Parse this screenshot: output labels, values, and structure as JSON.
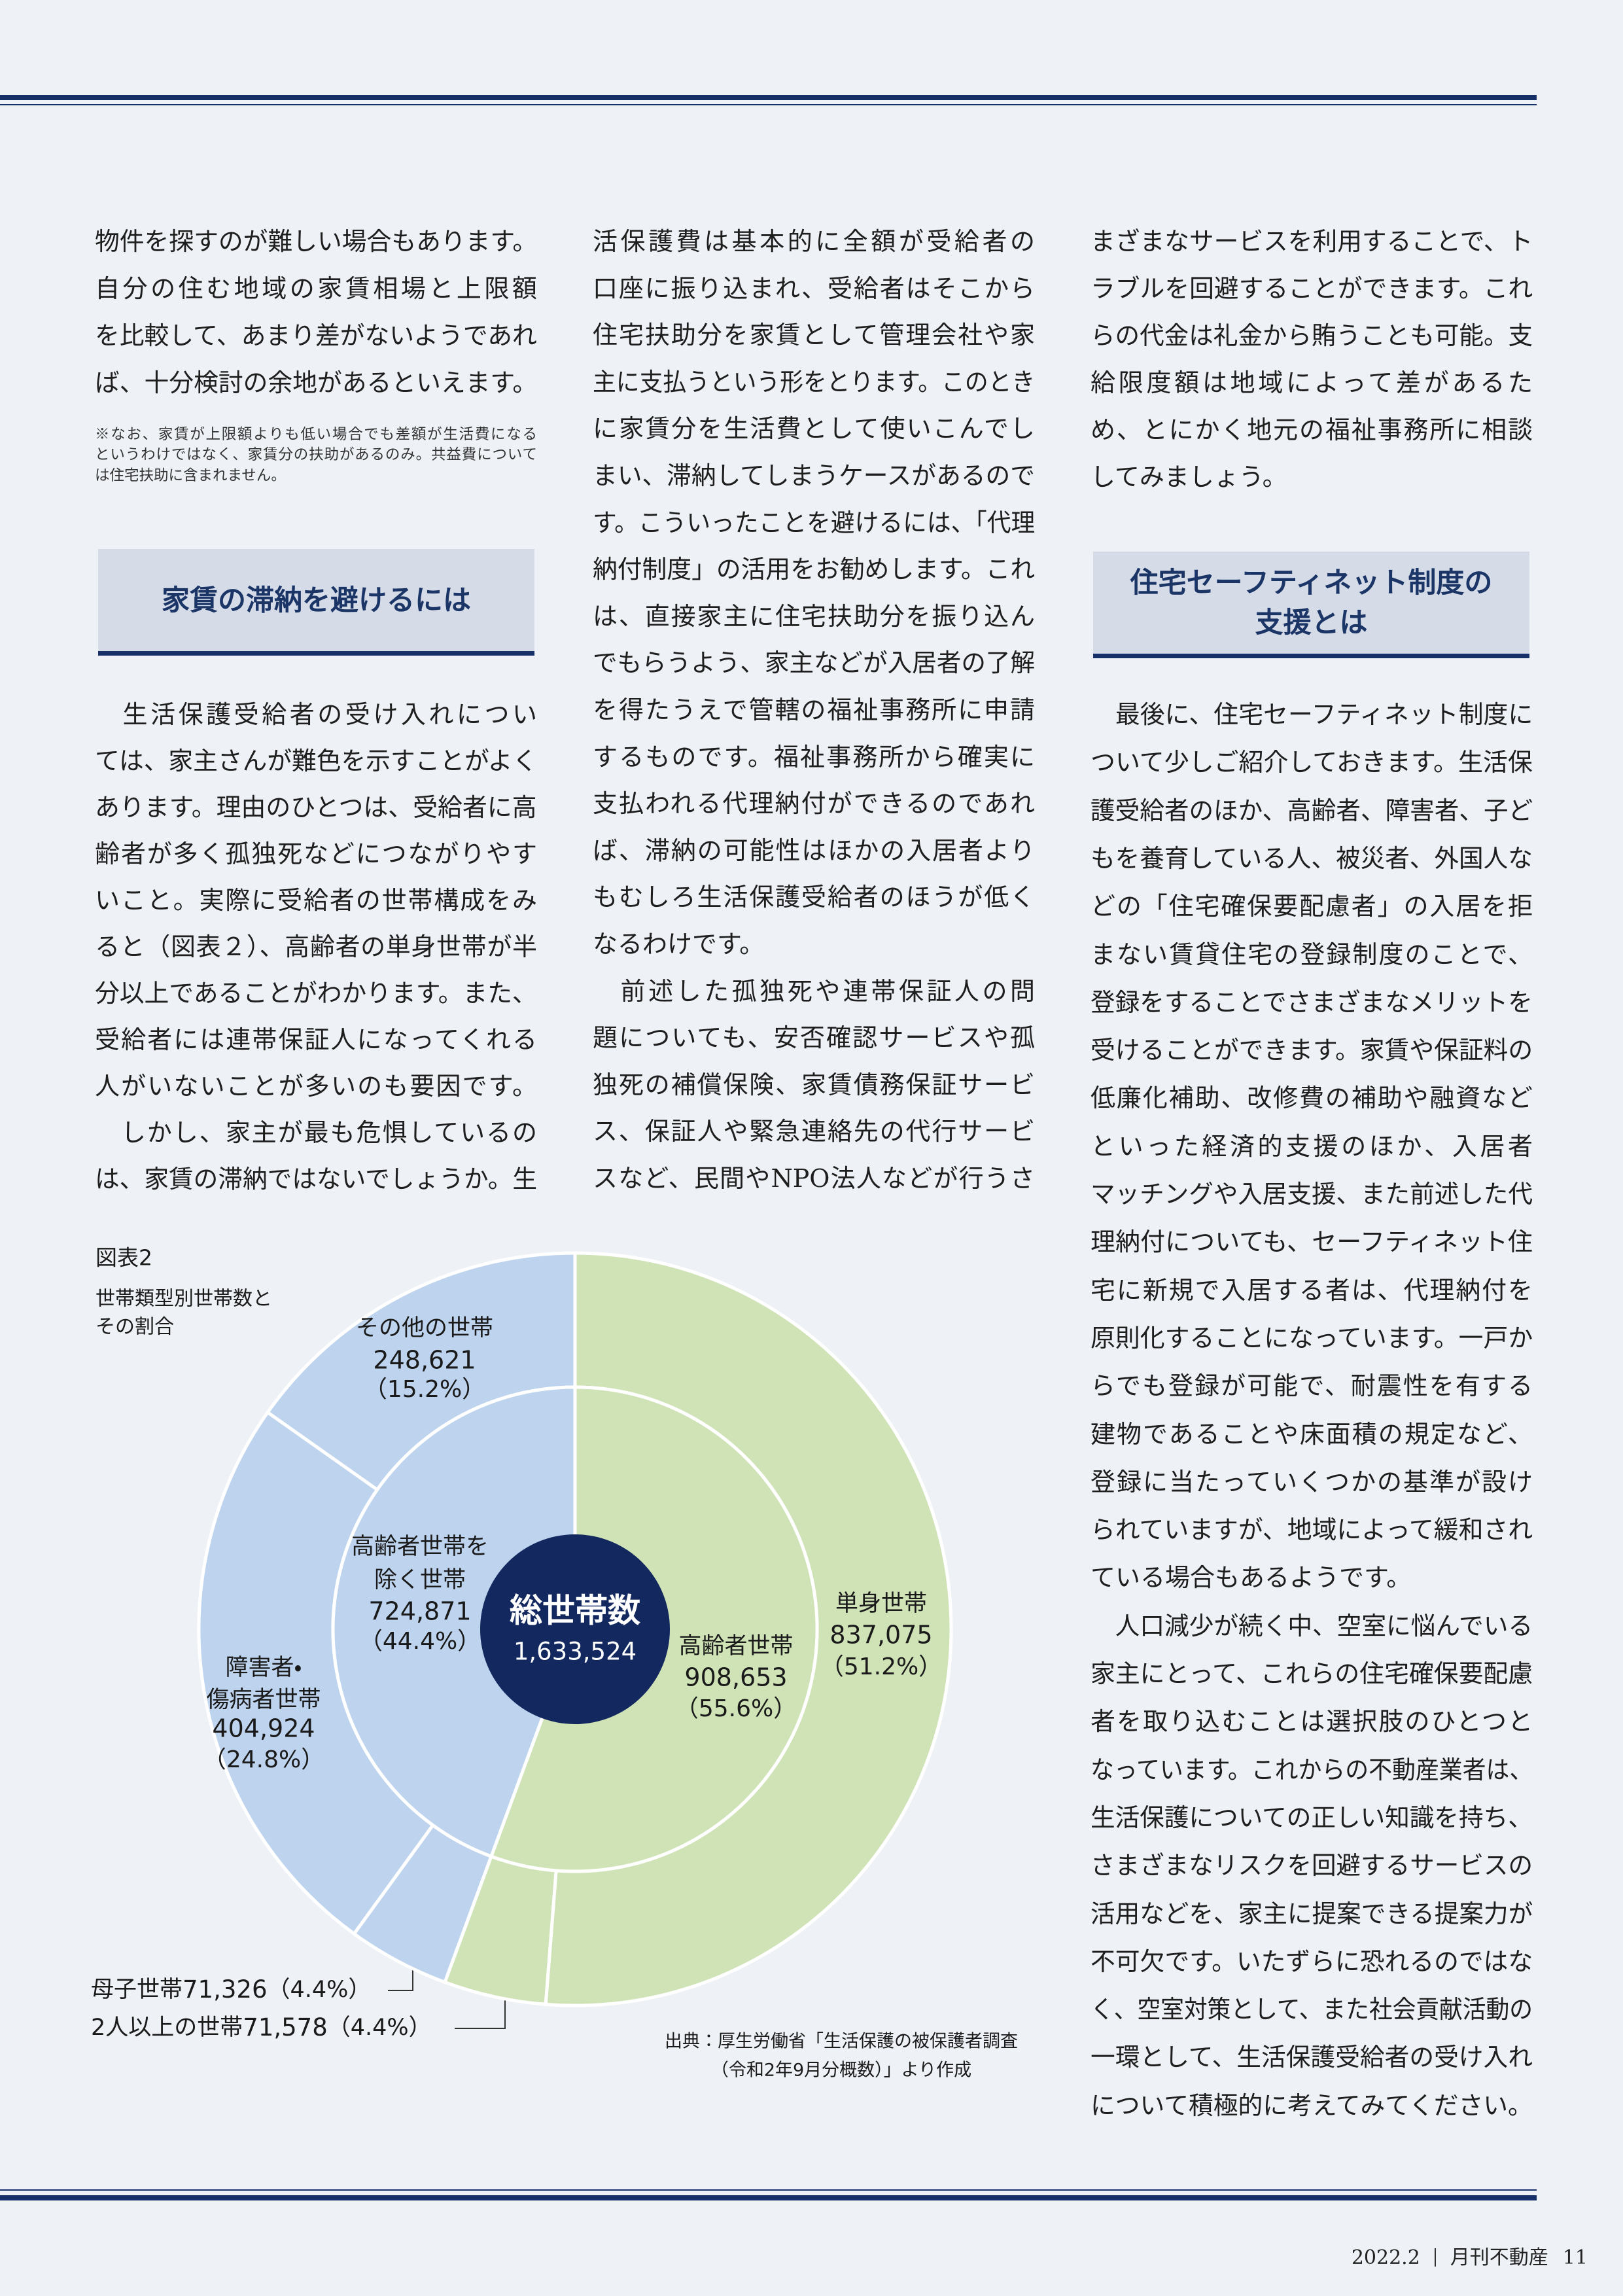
{
  "columns": [
    {
      "blocks": [
        {
          "lines": [
            "物件を探すのが難しい場合もあります。",
            "自分の住む地域の家賃相場と上限額",
            "を比較して、あまり差がないようであれ",
            "ば、十分検討の余地があるといえます。"
          ]
        },
        {
          "lines": [
            "※なお、家賃が上限額よりも低い場合でも差額が生活費になる",
            "というわけではなく、家賃分の扶助があるのみ。共益費について",
            "は住宅扶助に含まれません。"
          ]
        },
        {
          "lines": [
            "家賃の滞納を避けるには"
          ]
        },
        {
          "lines": [
            "　生活保護受給者の受け入れについ",
            "ては、家主さんが難色を示すことがよく",
            "あります。理由のひとつは、受給者に高",
            "齢者が多く孤独死などにつながりやす",
            "いこと。実際に受給者の世帯構成をみ",
            "ると（図表２）、高齢者の単身世帯が半",
            "分以上であることがわかります。また、",
            "受給者には連帯保証人になってくれる",
            "人がいないことが多いのも要因です。",
            "　しかし、家主が最も危惧しているの",
            "は、家賃の滞納ではないでしょうか。生"
          ]
        }
      ]
    },
    {
      "blocks": [
        {
          "lines": [
            "活保護費は基本的に全額が受給者の",
            "口座に振り込まれ、受給者はそこから",
            "住宅扶助分を家賃として管理会社や家",
            "主に支払うという形をとります。このとき",
            "に家賃分を生活費として使いこんでし",
            "まい、滞納してしまうケースがあるので",
            "す。こういったことを避けるには、「代理",
            "納付制度」の活用をお勧めします。これ",
            "は、直接家主に住宅扶助分を振り込ん",
            "でもらうよう、家主などが入居者の了解",
            "を得たうえで管轄の福祉事務所に申請",
            "するものです。福祉事務所から確実に",
            "支払われる代理納付ができるのであれ",
            "ば、滞納の可能性はほかの入居者より",
            "もむしろ生活保護受給者のほうが低く",
            "なるわけです。",
            "　前述した孤独死や連帯保証人の問",
            "題についても、安否確認サービスや孤",
            "独死の補償保険、家賃債務保証サービ",
            "ス、保証人や緊急連絡先の代行サービ",
            "スなど、民間やNPO法人などが行うさ"
          ]
        }
      ]
    },
    {
      "blocks": [
        {
          "lines": [
            "まざまなサービスを利用することで、ト",
            "ラブルを回避することができます。これ",
            "らの代金は礼金から賄うことも可能。支",
            "給限度額は地域によって差があるた",
            "め、とにかく地元の福祉事務所に相談",
            "してみましょう。"
          ]
        },
        {
          "lines": [
            "住宅セーフティネット制度の",
            "支援とは"
          ]
        },
        {
          "lines": [
            "　最後に、住宅セーフティネット制度に",
            "ついて少しご紹介しておきます。生活保",
            "護受給者のほか、高齢者、障害者、子ど",
            "もを養育している人、被災者、外国人な",
            "どの「住宅確保要配慮者」の入居を拒",
            "まない賃貸住宅の登録制度のことで、",
            "登録をすることでさまざまなメリットを",
            "受けることができます。家賃や保証料の",
            "低廉化補助、改修費の補助や融資など",
            "といった経済的支援のほか、入居者",
            "マッチングや入居支援、また前述した代",
            "理納付についても、セーフティネット住",
            "宅に新規で入居する者は、代理納付を",
            "原則化することになっています。一戸か",
            "らでも登録が可能で、耐震性を有する",
            "建物であることや床面積の規定など、",
            "登録に当たっていくつかの基準が設け",
            "られていますが、地域によって緩和され",
            "ている場合もあるようです。",
            "　人口減少が続く中、空室に悩んでいる",
            "家主にとって、これらの住宅確保要配慮",
            "者を取り込むことは選択肢のひとつと",
            "なっています。これからの不動産業者は、",
            "生活保護についての正しい知識を持ち、",
            "さまざまなリスクを回避するサービスの",
            "活用などを、家主に提案できる提案力が",
            "不可欠です。いたずらに恐れるのではな",
            "く、空室対策として、また社会貢献活動の",
            "一環として、生活保護受給者の受け入れ",
            "について積極的に考えてみてください。"
          ]
        }
      ]
    }
  ],
  "chart_data": {
    "type": "sunburst",
    "title": "図表2",
    "subtitle": [
      "世帯類型別世帯数と",
      "その割合"
    ],
    "center": {
      "name": "総世帯数",
      "value": 1633524,
      "value_label": "1,633,524",
      "color": "#12285e"
    },
    "inner": [
      {
        "name": [
          "高齢者世帯"
        ],
        "value": 908653,
        "value_label": "908,653",
        "percent_label": "（55.6%）",
        "color": "#cfe3b7"
      },
      {
        "name": [
          "高齢者世帯を",
          "除く世帯"
        ],
        "value": 724871,
        "value_label": "724,871",
        "percent_label": "（44.4%）",
        "color": "#bed4ee"
      }
    ],
    "outer": [
      {
        "name": [
          "単身世帯"
        ],
        "value": 837075,
        "value_label": "837,075",
        "percent_label": "（51.2%）",
        "color": "#cfe3b7"
      },
      {
        "name": [
          "2人以上の世帯"
        ],
        "value": 71578,
        "value_label": "71,578",
        "percent_label": "（4.4%）",
        "color": "#cfe3b7"
      },
      {
        "name": [
          "母子世帯"
        ],
        "value": 71326,
        "value_label": "71,326",
        "percent_label": "（4.4%）",
        "color": "#bed4ee"
      },
      {
        "name": [
          "障害者・",
          "傷病者世帯"
        ],
        "value": 404924,
        "value_label": "404,924",
        "percent_label": "（24.8%）",
        "color": "#bed4ee"
      },
      {
        "name": [
          "その他の世帯"
        ],
        "value": 248621,
        "value_label": "248,621",
        "percent_label": "（15.2%）",
        "color": "#bed4ee"
      }
    ],
    "source": [
      "出典：厚生労働省「生活保護の被保護者調査",
      "（令和2年9月分概数）」より作成"
    ]
  },
  "footer": {
    "issue": "2022.2",
    "magazine": "月刊不動産",
    "page": "11"
  }
}
